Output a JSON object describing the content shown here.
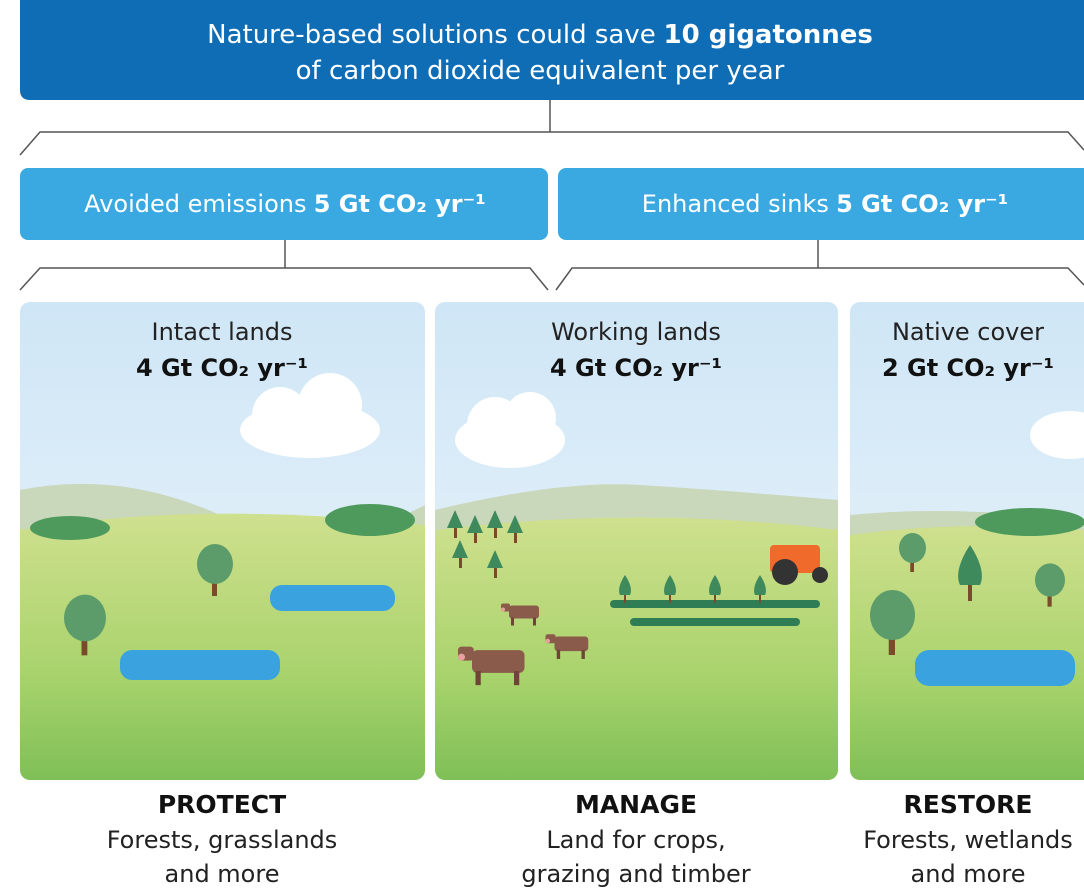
{
  "header": {
    "title_line1": "Nature-based solutions could save",
    "title_bold": "10 gigatonnes",
    "title_line2": "of carbon dioxide equivalent per year"
  },
  "categories": [
    {
      "label": "Avoided emissions",
      "amount": "5 Gt CO₂ yr⁻¹"
    },
    {
      "label": "Enhanced sinks",
      "amount": "5 Gt CO₂ yr⁻¹"
    }
  ],
  "panels": [
    {
      "title": "Intact lands",
      "amount": "4 Gt CO₂ yr⁻¹",
      "action": "PROTECT",
      "description": [
        "Forests, grasslands",
        "and more"
      ]
    },
    {
      "title": "Working lands",
      "amount": "4 Gt CO₂ yr⁻¹",
      "action": "MANAGE",
      "description": [
        "Land for crops,",
        "grazing and timber"
      ]
    },
    {
      "title": "Native cover",
      "amount": "2 Gt CO₂ yr⁻¹",
      "action": "RESTORE",
      "description": [
        "Forests, wetlands",
        "and more"
      ]
    }
  ]
}
